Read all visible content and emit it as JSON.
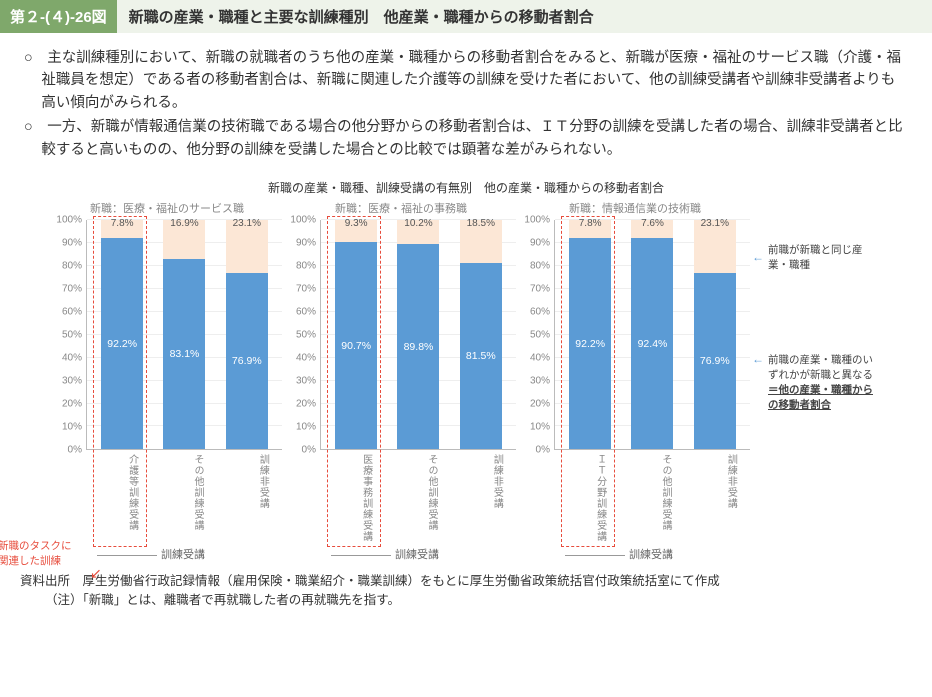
{
  "header": {
    "num": "第２-(４)-26図",
    "title": "新職の産業・職種と主要な訓練種別　他産業・職種からの移動者割合"
  },
  "bullets": [
    "○　主な訓練種別において、新職の就職者のうち他の産業・職種からの移動者割合をみると、新職が医療・福祉のサービス職（介護・福祉職員を想定）である者の移動者割合は、新職に関連した介護等の訓練を受けた者において、他の訓練受講者や訓練非受講者よりも高い傾向がみられる。",
    "○　一方、新職が情報通信業の技術職である場合の他分野からの移動者割合は、ＩＴ分野の訓練を受講した者の場合、訓練非受講者と比較すると高いものの、他分野の訓練を受講した場合との比較では顕著な差がみられない。"
  ],
  "chart_title": "新職の産業・職種、訓練受講の有無別　他の産業・職種からの移動者割合",
  "yaxis": {
    "min": 0,
    "max": 100,
    "step": 10,
    "suffix": "%"
  },
  "colors": {
    "bottom": "#5b9bd5",
    "top": "#fce7d6",
    "highlight": "#e74c3c",
    "grid": "#eeeeee"
  },
  "panels": [
    {
      "title": "新職：医療・福祉のサービス職",
      "bars": [
        {
          "xlab": "介護等訓練受講",
          "bottom": 92.2,
          "top": 7.8,
          "highlight": true
        },
        {
          "xlab": "その他訓練受講",
          "bottom": 83.1,
          "top": 16.9
        },
        {
          "xlab": "訓練非受講",
          "bottom": 76.9,
          "top": 23.1
        }
      ],
      "group_label": "訓練受講"
    },
    {
      "title": "新職：医療・福祉の事務職",
      "bars": [
        {
          "xlab": "医療事務訓練受講",
          "bottom": 90.7,
          "top": 9.3,
          "highlight": true
        },
        {
          "xlab": "その他訓練受講",
          "bottom": 89.8,
          "top": 10.2
        },
        {
          "xlab": "訓練非受講",
          "bottom": 81.5,
          "top": 18.5
        }
      ],
      "group_label": "訓練受講"
    },
    {
      "title": "新職：情報通信業の技術職",
      "bars": [
        {
          "xlab": "ＩＴ分野訓練受講",
          "bottom": 92.2,
          "top": 7.8,
          "highlight": true
        },
        {
          "xlab": "その他訓練受講",
          "bottom": 92.4,
          "top": 7.6
        },
        {
          "xlab": "訓練非受講",
          "bottom": 76.9,
          "top": 23.1
        }
      ],
      "group_label": "訓練受講"
    }
  ],
  "legend": {
    "top": "前職が新職と同じ産業・職種",
    "bottom": "前職の産業・職種のいずれかが新職と異なる\n＝他の産業・職種からの移動者割合"
  },
  "red_note": "新職のタスクに\n関連した訓練",
  "sources": {
    "line1": "資料出所　厚生労働省行政記録情報（雇用保険・職業紹介・職業訓練）をもとに厚生労働省政策統括官付政策統括室にて作成",
    "line2": "（注）「新職」とは、離職者で再就職した者の再就職先を指す。"
  }
}
